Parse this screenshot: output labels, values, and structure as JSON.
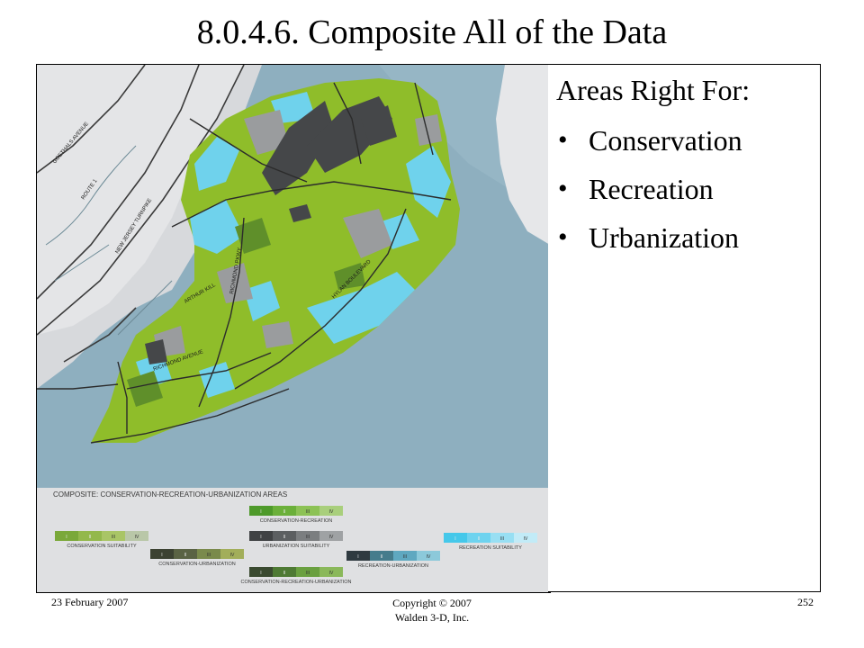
{
  "slide": {
    "title": "8.0.4.6. Composite All of the Data"
  },
  "sidebar": {
    "heading": "Areas Right For:",
    "bullets": [
      "Conservation",
      "Recreation",
      "Urbanization"
    ]
  },
  "map": {
    "title": "COMPOSITE: CONSERVATION-RECREATION-URBANIZATION AREAS",
    "road_labels": [
      "ROUTE 1",
      "NEW JERSEY TURNPIKE",
      "GOETHALS AVENUE",
      "RICHMOND PKWY",
      "HYLAN BOULEVARD",
      "ARTHUR KILL",
      "RICHMOND AVENUE"
    ],
    "legend_classes": [
      "I",
      "II",
      "III",
      "IV"
    ],
    "legends": [
      {
        "label": "CONSERVATION-RECREATION",
        "colors": [
          "#4e9a2a",
          "#6bb03a",
          "#8cc255",
          "#a9cf7c"
        ]
      },
      {
        "label": "CONSERVATION SUITABILITY",
        "colors": [
          "#7aa83a",
          "#93b84c",
          "#a9c566",
          "#b9c7a8"
        ]
      },
      {
        "label": "URBANIZATION SUITABILITY",
        "colors": [
          "#404244",
          "#5c5f61",
          "#7b7e80",
          "#9fa2a4"
        ]
      },
      {
        "label": "RECREATION SUITABILITY",
        "colors": [
          "#45c8ea",
          "#6ed3ef",
          "#98dff3",
          "#c2ebf7"
        ]
      },
      {
        "label": "CONSERVATION-URBANIZATION",
        "colors": [
          "#3c4232",
          "#5a6344",
          "#7a8a4c",
          "#a2ae5a"
        ]
      },
      {
        "label": "RECREATION-URBANIZATION",
        "colors": [
          "#2f3a40",
          "#457c8c",
          "#5fa8c0",
          "#8cc9da"
        ]
      },
      {
        "label": "CONSERVATION-RECREATION-URBANIZATION",
        "colors": [
          "#3a4a30",
          "#4e7a34",
          "#6aa040",
          "#8ab85a"
        ]
      }
    ],
    "colors": {
      "water": "#8fb0c0",
      "land": "#dcdde0",
      "conservation": "#8cb62a",
      "recreation": "#6dd0ea",
      "urbanization": "#4a4c4f"
    }
  },
  "footer": {
    "date": "23 February 2007",
    "copyright_line1": "Copyright © 2007",
    "copyright_line2": "Walden 3-D, Inc.",
    "page_number": "252"
  }
}
